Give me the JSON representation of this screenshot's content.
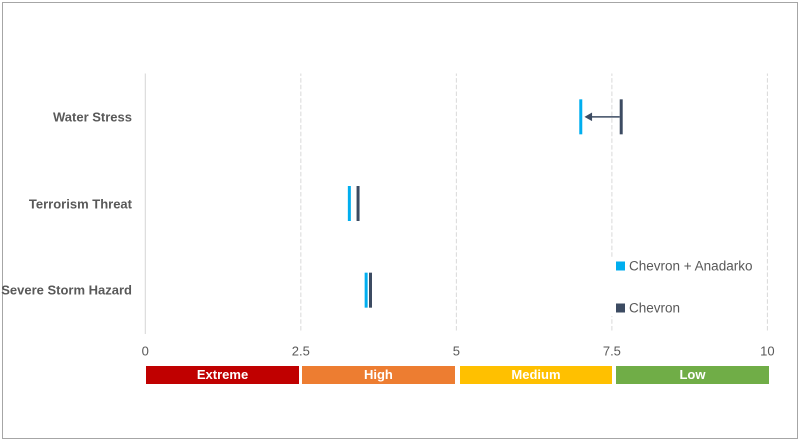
{
  "chart_data": {
    "type": "scatter",
    "title": "",
    "categories": [
      "Water Stress",
      "Terrorism Threat",
      "Severe Storm Hazard"
    ],
    "series": [
      {
        "name": "Chevron + Anadarko",
        "color": "#00AEEF",
        "marker": "vertical-bar",
        "values": [
          7.0,
          3.28,
          3.55
        ]
      },
      {
        "name": "Chevron",
        "color": "#3C4B62",
        "marker": "vertical-bar",
        "values": [
          7.65,
          3.42,
          3.62
        ]
      }
    ],
    "xlim": [
      0,
      10
    ],
    "xtick_labels": [
      "0",
      "2.5",
      "5",
      "7.5",
      "10"
    ],
    "xtick_values": [
      0,
      2.5,
      5,
      7.5,
      10
    ],
    "grid": "vertical-dashed-gridlines",
    "legend_position": "right",
    "risk_bands": [
      {
        "label": "Extreme",
        "range": [
          0,
          2.5
        ],
        "color": "#C00000",
        "text_color": "#FFFFFF"
      },
      {
        "label": "High",
        "range": [
          2.5,
          5
        ],
        "color": "#ED7D31",
        "text_color": "#FFFFFF"
      },
      {
        "label": "Medium",
        "range": [
          5,
          7.5
        ],
        "color": "#FFC000",
        "text_color": "#FFFFFF"
      },
      {
        "label": "Low",
        "range": [
          7.5,
          10
        ],
        "color": "#70AD47",
        "text_color": "#FFFFFF"
      }
    ],
    "annotations": [
      {
        "type": "arrow-left",
        "category": "Water Stress",
        "from_value": 7.65,
        "to_value": 7.0,
        "color": "#3C4B62"
      }
    ]
  },
  "frame": {
    "background": "#FFFFFF",
    "border_color": "#A6A6A6",
    "axis_line_color": "#D9D9D9",
    "gridline_color": "#D9D9D9",
    "text_color": "#595959"
  }
}
